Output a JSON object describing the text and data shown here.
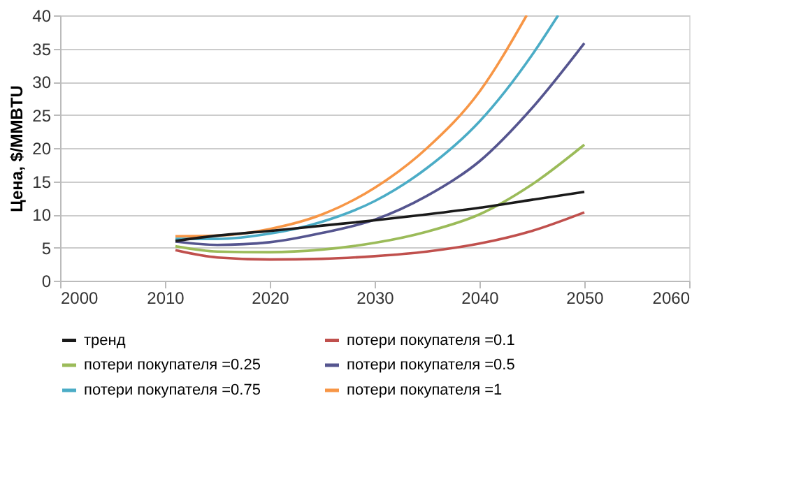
{
  "chart_data": {
    "type": "line",
    "ylabel": "Цена, $/MMBTU",
    "xlim": [
      2000,
      2060
    ],
    "xticks": [
      2000,
      2010,
      2020,
      2030,
      2040,
      2050,
      2060
    ],
    "ylim": [
      0,
      40
    ],
    "yticks": [
      0,
      5,
      10,
      15,
      20,
      25,
      30,
      35,
      40
    ],
    "grid": "y",
    "legend": "bottom",
    "marker": "none",
    "line_style": "solid",
    "series": [
      {
        "name": "тренд",
        "color": "#1a1a1a",
        "x": [
          2011,
          2015,
          2020,
          2025,
          2030,
          2035,
          2040,
          2045,
          2050
        ],
        "values": [
          6.0,
          6.8,
          7.5,
          8.3,
          9.1,
          10.0,
          11.0,
          12.2,
          13.4
        ]
      },
      {
        "name": "потери покупателя =0.1",
        "color": "#c0504d",
        "x": [
          2011,
          2015,
          2020,
          2025,
          2030,
          2035,
          2040,
          2045,
          2050
        ],
        "values": [
          4.6,
          3.5,
          3.2,
          3.3,
          3.7,
          4.4,
          5.6,
          7.5,
          10.3
        ]
      },
      {
        "name": "потери покупателя =0.25",
        "color": "#9bbb59",
        "x": [
          2011,
          2015,
          2020,
          2025,
          2030,
          2035,
          2040,
          2045,
          2050
        ],
        "values": [
          5.2,
          4.4,
          4.3,
          4.7,
          5.7,
          7.4,
          10.0,
          14.5,
          20.5
        ]
      },
      {
        "name": "потери покупателя =0.5",
        "color": "#55558f",
        "x": [
          2011,
          2015,
          2020,
          2025,
          2030,
          2035,
          2040,
          2045,
          2050
        ],
        "values": [
          5.9,
          5.4,
          5.8,
          7.2,
          9.2,
          12.8,
          18.0,
          26.0,
          35.8
        ]
      },
      {
        "name": "потери покупателя =0.75",
        "color": "#4bacc6",
        "x": [
          2011,
          2015,
          2020,
          2025,
          2030,
          2035,
          2040,
          2045,
          2047.5
        ],
        "values": [
          6.3,
          6.3,
          7.1,
          8.9,
          12.0,
          17.0,
          24.0,
          34.0,
          40.0
        ]
      },
      {
        "name": "потери покупателя =1",
        "color": "#f79646",
        "x": [
          2011,
          2015,
          2020,
          2025,
          2030,
          2035,
          2040,
          2044.5
        ],
        "values": [
          6.7,
          6.8,
          7.8,
          10.0,
          14.0,
          20.0,
          28.5,
          40.0
        ]
      }
    ]
  }
}
